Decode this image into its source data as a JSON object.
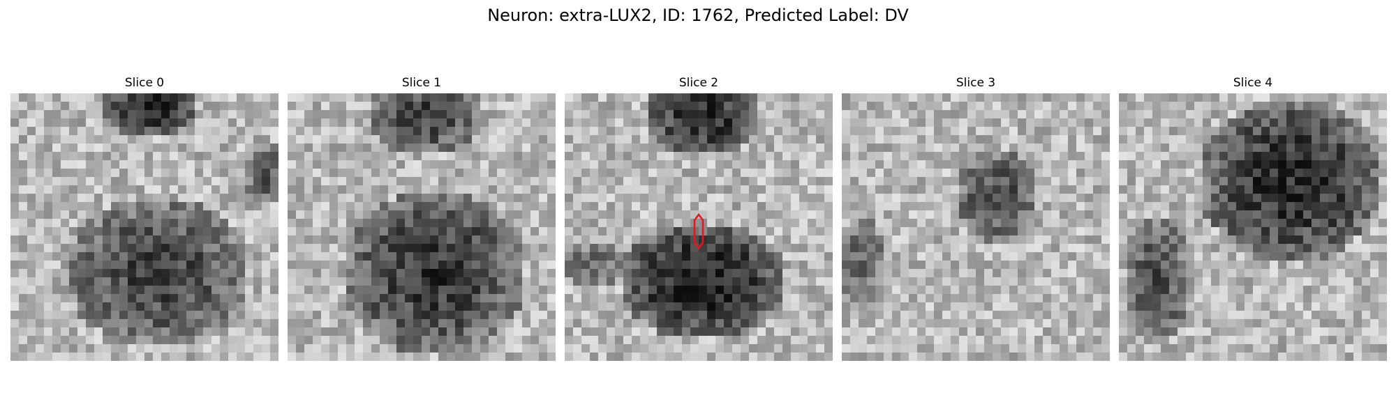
{
  "figure": {
    "title": "Neuron: extra-LUX2, ID: 1762, Predicted Label: DV"
  },
  "slices": [
    {
      "label": "Slice 0",
      "has_marker": false
    },
    {
      "label": "Slice 1",
      "has_marker": false
    },
    {
      "label": "Slice 2",
      "has_marker": true
    },
    {
      "label": "Slice 3",
      "has_marker": false
    },
    {
      "label": "Slice 4",
      "has_marker": false
    }
  ],
  "colors": {
    "marker": "#e8141c",
    "background": "#ffffff"
  },
  "colormap": "gray"
}
